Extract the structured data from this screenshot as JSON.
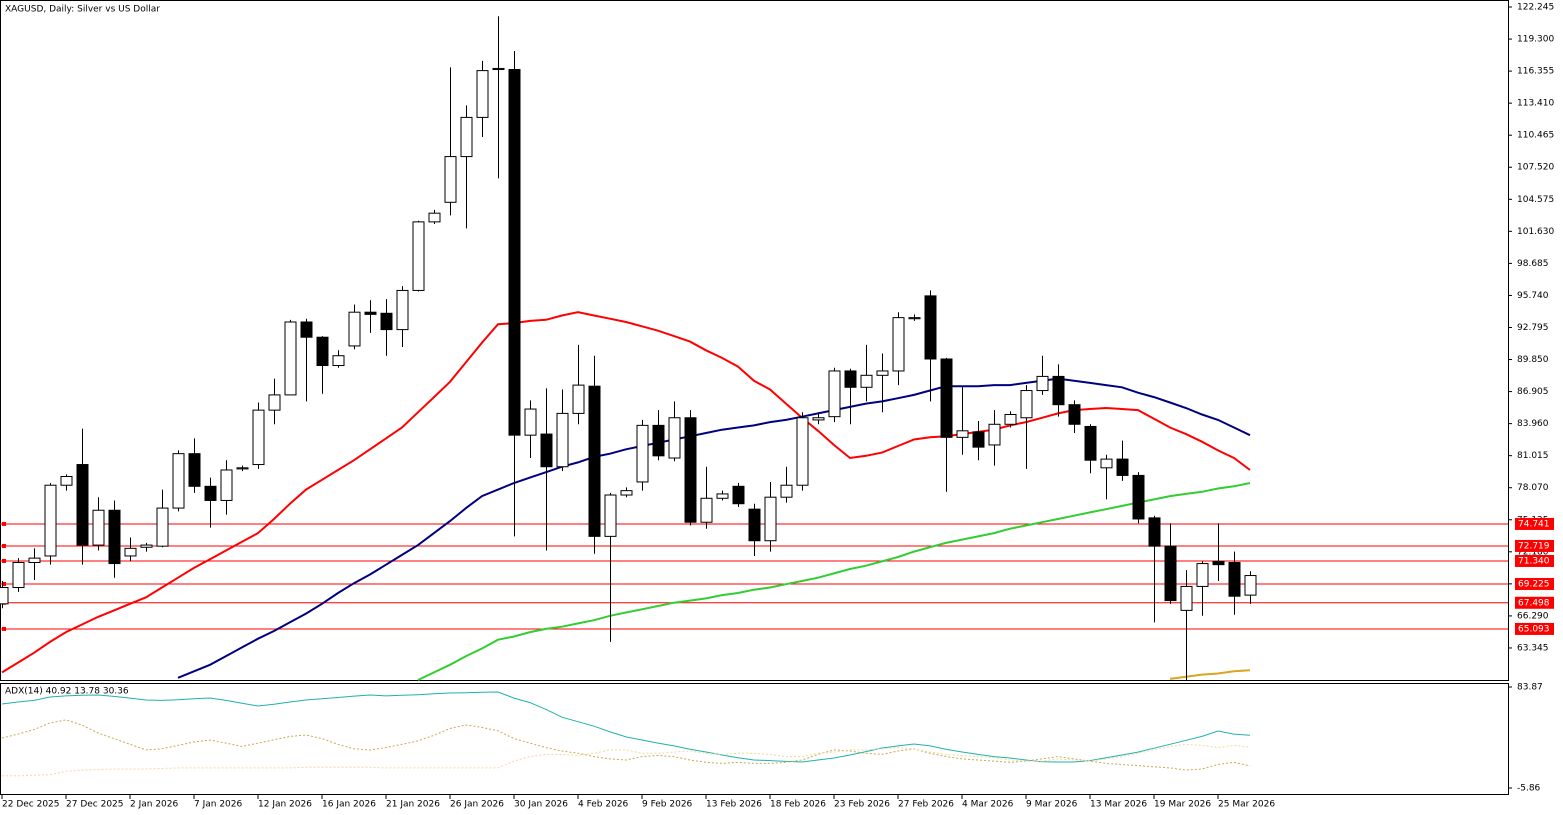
{
  "chart_data": [
    {
      "type": "candlestick",
      "title": "XAGUSD, Daily:  Silver vs US Dollar",
      "categories": [
        "22 Dec 2025",
        null,
        null,
        null,
        "27 Dec 2025",
        null,
        null,
        null,
        "2 Jan 2026",
        null,
        null,
        null,
        "7 Jan 2026",
        null,
        null,
        null,
        "12 Jan 2026",
        null,
        null,
        null,
        "16 Jan 2026",
        null,
        null,
        null,
        "21 Jan 2026",
        null,
        null,
        null,
        "26 Jan 2026",
        null,
        null,
        null,
        "30 Jan 2026",
        null,
        null,
        null,
        "4 Feb 2026",
        null,
        null,
        null,
        "9 Feb 2026",
        null,
        null,
        null,
        "13 Feb 2026",
        null,
        null,
        null,
        "18 Feb 2026",
        null,
        null,
        null,
        "23 Feb 2026",
        null,
        null,
        null,
        "27 Feb 2026",
        null,
        null,
        null,
        "4 Mar 2026",
        null,
        null,
        null,
        "9 Mar 2026",
        null,
        null,
        null,
        "13 Mar 2026",
        null,
        null,
        null,
        "19 Mar 2026",
        null,
        null,
        null,
        "25 Mar 2026",
        null,
        null
      ],
      "open": [
        67.4,
        68.9,
        71.2,
        71.8,
        78.3,
        80.2,
        72.8,
        76.0,
        71.8,
        72.6,
        72.7,
        76.2,
        81.2,
        78.2,
        76.9,
        79.8,
        80.2,
        85.2,
        86.6,
        93.3,
        91.9,
        89.3,
        91.1,
        94.2,
        94.1,
        92.6,
        96.2,
        102.5,
        104.3,
        108.5,
        112.1,
        116.5,
        116.5,
        82.9,
        83.0,
        80.0,
        84.9,
        87.4,
        73.6,
        77.4,
        78.6,
        83.8,
        80.8,
        84.5,
        74.9,
        77.1,
        78.2,
        76.1,
        73.2,
        77.2,
        78.3,
        84.3,
        84.6,
        88.8,
        87.3,
        88.4,
        88.8,
        93.6,
        95.7,
        89.9,
        82.7,
        83.2,
        82.0,
        83.9,
        84.5,
        87.0,
        88.3,
        85.7,
        83.7,
        79.9,
        80.7,
        79.2,
        75.3,
        72.7,
        66.8,
        69.0,
        71.3,
        71.2,
        68.2
      ],
      "high": [
        69.5,
        71.6,
        72.5,
        78.5,
        79.3,
        83.5,
        77.2,
        76.9,
        73.5,
        73.0,
        77.9,
        81.5,
        82.6,
        79.0,
        80.6,
        80.1,
        85.9,
        88.1,
        93.5,
        93.6,
        92.0,
        90.7,
        94.9,
        95.3,
        95.4,
        96.6,
        102.6,
        103.6,
        116.7,
        113.2,
        117.3,
        121.4,
        118.2,
        86.1,
        87.2,
        87.1,
        91.2,
        90.2,
        77.6,
        78.1,
        84.3,
        85.2,
        86.0,
        85.2,
        80.0,
        77.8,
        78.5,
        76.6,
        78.6,
        80.0,
        85.0,
        85.0,
        89.1,
        89.0,
        91.2,
        90.4,
        94.2,
        94.0,
        96.2,
        90.0,
        87.4,
        84.2,
        85.2,
        85.1,
        87.5,
        90.2,
        89.4,
        86.1,
        83.9,
        81.1,
        82.4,
        79.5,
        75.5,
        74.8,
        70.5,
        71.3,
        74.8,
        72.2,
        70.4
      ],
      "low": [
        67.0,
        68.5,
        69.6,
        71.0,
        77.8,
        71.0,
        72.3,
        69.8,
        71.3,
        72.2,
        72.6,
        75.9,
        77.6,
        74.4,
        75.6,
        79.6,
        79.8,
        83.9,
        86.6,
        86.0,
        86.7,
        89.1,
        90.8,
        92.3,
        90.2,
        91.0,
        96.1,
        102.3,
        103.1,
        101.9,
        110.3,
        106.5,
        73.6,
        80.8,
        72.3,
        79.6,
        83.9,
        72.0,
        63.9,
        77.2,
        77.8,
        80.6,
        80.5,
        74.6,
        74.3,
        76.9,
        76.3,
        71.8,
        72.2,
        76.7,
        77.8,
        83.9,
        84.1,
        83.9,
        86.0,
        85.0,
        87.5,
        93.4,
        86.0,
        77.7,
        81.1,
        80.6,
        80.1,
        83.6,
        79.8,
        86.6,
        84.6,
        83.1,
        79.4,
        77.0,
        78.7,
        74.8,
        65.7,
        67.4,
        60.4,
        66.3,
        69.5,
        66.4,
        67.4
      ],
      "close": [
        68.9,
        71.2,
        71.6,
        78.3,
        79.1,
        72.8,
        76.0,
        71.1,
        72.5,
        72.8,
        76.2,
        81.2,
        78.2,
        76.9,
        79.7,
        79.9,
        85.2,
        86.6,
        93.3,
        91.9,
        89.3,
        90.2,
        94.2,
        94.0,
        92.6,
        96.2,
        102.5,
        103.3,
        108.5,
        112.1,
        116.4,
        116.6,
        82.9,
        85.3,
        80.0,
        84.9,
        87.5,
        73.6,
        77.4,
        77.8,
        83.8,
        81.0,
        84.5,
        74.9,
        77.1,
        77.5,
        76.6,
        73.2,
        77.2,
        78.3,
        84.5,
        84.5,
        88.8,
        87.3,
        88.4,
        88.8,
        93.7,
        93.7,
        89.9,
        82.7,
        83.3,
        81.8,
        83.9,
        84.8,
        87.0,
        88.3,
        85.7,
        83.9,
        80.6,
        80.7,
        79.2,
        75.2,
        72.7,
        67.7,
        69.0,
        71.1,
        71.0,
        68.1,
        70.0
      ],
      "up_color": "#ffffff",
      "down_color": "#000000",
      "series": [
        {
          "color": "#ff0000",
          "values": [
            61.1,
            62.0,
            62.9,
            63.9,
            64.8,
            65.5,
            66.2,
            66.8,
            67.4,
            68.0,
            68.9,
            69.8,
            70.7,
            71.5,
            72.3,
            73.1,
            73.9,
            75.2,
            76.6,
            77.9,
            78.8,
            79.7,
            80.6,
            81.6,
            82.6,
            83.6,
            85.0,
            86.4,
            87.8,
            89.6,
            91.4,
            93.1,
            93.2,
            93.4,
            93.5,
            93.9,
            94.2,
            93.9,
            93.6,
            93.3,
            92.9,
            92.5,
            92.0,
            91.5,
            90.7,
            90.0,
            89.2,
            87.9,
            87.1,
            85.8,
            84.5,
            83.3,
            82.0,
            80.8,
            81.0,
            81.3,
            81.9,
            82.5,
            82.7,
            82.8,
            83.0,
            83.2,
            83.4,
            83.8,
            84.1,
            84.5,
            84.9,
            85.2,
            85.3,
            85.4,
            85.3,
            85.2,
            84.4,
            83.6,
            83.0,
            82.3,
            81.5,
            80.8,
            79.7
          ]
        },
        {
          "color": "#000080",
          "values": [
            null,
            null,
            null,
            null,
            null,
            null,
            null,
            null,
            null,
            null,
            null,
            60.6,
            61.2,
            61.8,
            62.6,
            63.4,
            64.2,
            64.9,
            65.7,
            66.5,
            67.4,
            68.4,
            69.3,
            70.1,
            71.0,
            71.9,
            72.8,
            73.9,
            75.0,
            76.2,
            77.3,
            77.9,
            78.5,
            79.0,
            79.5,
            80.0,
            80.4,
            80.9,
            81.2,
            81.6,
            81.9,
            82.2,
            82.5,
            82.8,
            83.1,
            83.4,
            83.6,
            83.8,
            84.1,
            84.3,
            84.6,
            84.9,
            85.2,
            85.5,
            85.8,
            86.0,
            86.3,
            86.6,
            87.0,
            87.4,
            87.4,
            87.4,
            87.5,
            87.5,
            87.7,
            87.9,
            88.1,
            87.9,
            87.7,
            87.5,
            87.3,
            86.8,
            86.4,
            85.9,
            85.4,
            84.8,
            84.3,
            83.6,
            82.9
          ]
        },
        {
          "color": "#32cd32",
          "values": [
            null,
            null,
            null,
            null,
            null,
            null,
            null,
            null,
            null,
            null,
            null,
            null,
            null,
            null,
            null,
            null,
            null,
            null,
            null,
            null,
            null,
            null,
            null,
            null,
            null,
            null,
            60.4,
            61.1,
            61.8,
            62.6,
            63.3,
            64.1,
            64.4,
            64.8,
            65.1,
            65.3,
            65.6,
            65.9,
            66.3,
            66.6,
            66.9,
            67.2,
            67.5,
            67.7,
            67.9,
            68.2,
            68.4,
            68.7,
            68.9,
            69.2,
            69.5,
            69.8,
            70.2,
            70.6,
            70.9,
            71.3,
            71.7,
            72.2,
            72.6,
            73.0,
            73.3,
            73.6,
            73.9,
            74.3,
            74.6,
            74.9,
            75.2,
            75.5,
            75.8,
            76.1,
            76.4,
            76.7,
            77.0,
            77.3,
            77.5,
            77.7,
            78.0,
            78.2,
            78.5
          ]
        },
        {
          "color": "#daa520",
          "values": [
            null,
            null,
            null,
            null,
            null,
            null,
            null,
            null,
            null,
            null,
            null,
            null,
            null,
            null,
            null,
            null,
            null,
            null,
            null,
            null,
            null,
            null,
            null,
            null,
            null,
            null,
            null,
            null,
            null,
            null,
            null,
            null,
            null,
            null,
            null,
            null,
            null,
            null,
            null,
            null,
            null,
            null,
            null,
            null,
            null,
            null,
            null,
            null,
            null,
            null,
            null,
            null,
            null,
            null,
            null,
            null,
            null,
            null,
            null,
            null,
            null,
            null,
            null,
            null,
            null,
            null,
            null,
            null,
            null,
            null,
            null,
            null,
            null,
            60.5,
            60.7,
            60.9,
            61.0,
            61.2,
            61.3
          ]
        }
      ],
      "hlines": [
        {
          "value": 74.741,
          "label": "74.741"
        },
        {
          "value": 72.719,
          "label": "72.719"
        },
        {
          "value": 71.34,
          "label": "71.340"
        },
        {
          "value": 69.225,
          "label": "69.225"
        },
        {
          "value": 67.498,
          "label": "67.498"
        },
        {
          "value": 65.093,
          "label": "65.093"
        }
      ],
      "hline_color": "#ff0000",
      "ylim": [
        60.401,
        122.797
      ],
      "yticks": [
        {
          "value": 122.245,
          "label": "122.245"
        },
        {
          "value": 119.3,
          "label": "119.300"
        },
        {
          "value": 116.355,
          "label": "116.355"
        },
        {
          "value": 113.41,
          "label": "113.410"
        },
        {
          "value": 110.465,
          "label": "110.465"
        },
        {
          "value": 107.52,
          "label": "107.520"
        },
        {
          "value": 104.575,
          "label": "104.575"
        },
        {
          "value": 101.63,
          "label": "101.630"
        },
        {
          "value": 98.685,
          "label": "98.685"
        },
        {
          "value": 95.74,
          "label": "95.740"
        },
        {
          "value": 92.795,
          "label": "92.795"
        },
        {
          "value": 89.85,
          "label": "89.850"
        },
        {
          "value": 86.905,
          "label": "86.905"
        },
        {
          "value": 83.96,
          "label": "83.960"
        },
        {
          "value": 81.015,
          "label": "81.015"
        },
        {
          "value": 78.07,
          "label": "78.070"
        },
        {
          "value": 75.125,
          "label": "75.125"
        },
        {
          "value": 72.18,
          "label": "72.180"
        },
        {
          "value": 69.235,
          "label": "69.235"
        },
        {
          "value": 66.29,
          "label": "66.290"
        },
        {
          "value": 63.345,
          "label": "63.345"
        }
      ]
    },
    {
      "type": "line",
      "title": "ADX(14) 40.92 13.78 30.36",
      "series": [
        {
          "color": "#20b2aa",
          "style": "solid",
          "values": [
            68.8,
            70.5,
            72.0,
            75.0,
            76.0,
            76.5,
            76.8,
            75.5,
            74.0,
            72.3,
            72.0,
            72.5,
            73.5,
            74.1,
            72.0,
            69.5,
            67.0,
            68.5,
            70.5,
            72.3,
            73.5,
            74.5,
            75.8,
            76.8,
            76.0,
            76.5,
            77.0,
            77.8,
            78.5,
            78.8,
            79.2,
            79.4,
            74.0,
            70.0,
            64.0,
            57.0,
            53.0,
            49.0,
            44.0,
            39.5,
            36.8,
            34.0,
            31.5,
            28.5,
            26.1,
            23.5,
            21.0,
            19.0,
            18.5,
            17.8,
            17.2,
            19.0,
            20.8,
            23.5,
            26.5,
            29.7,
            31.5,
            33.2,
            31.5,
            28.5,
            26.1,
            24.0,
            22.0,
            20.8,
            19.0,
            17.5,
            17.2,
            17.2,
            18.5,
            21.0,
            23.5,
            26.0,
            29.5,
            33.0,
            36.5,
            40.0,
            44.8,
            42.0,
            40.92
          ]
        },
        {
          "color": "#c8a850",
          "style": "dotted",
          "values": [
            38.6,
            42,
            46,
            52,
            54.6,
            50,
            43,
            38,
            33,
            28,
            29,
            32,
            35,
            36.8,
            34,
            31,
            34,
            37,
            40,
            41.2,
            38,
            33,
            29,
            27.9,
            30,
            33,
            36,
            41,
            47,
            50.1,
            48,
            45,
            38,
            34,
            30,
            27,
            25,
            22,
            20,
            19,
            22,
            23,
            22,
            19,
            17,
            16,
            17,
            16,
            16,
            17,
            19,
            24,
            28,
            27,
            25,
            24,
            27,
            29,
            25,
            22,
            20,
            19,
            18,
            17,
            18,
            20,
            22,
            20,
            18,
            16,
            15,
            14,
            13,
            12,
            10,
            11,
            15,
            17,
            13.78
          ]
        },
        {
          "color": "#f0d8a0",
          "style": "dotted",
          "values": [
            5,
            5,
            5.5,
            6,
            9,
            10,
            10.5,
            11,
            11,
            11,
            11.5,
            12,
            12,
            12,
            12,
            12,
            12,
            12,
            12,
            12.5,
            12.5,
            12.5,
            12.5,
            12.5,
            12,
            12,
            12,
            12,
            12,
            12,
            12,
            12,
            18,
            22,
            24,
            24,
            23,
            25,
            28,
            28,
            25,
            25,
            26,
            27,
            25,
            24,
            25,
            25,
            24,
            22,
            22,
            25,
            26,
            28,
            28,
            29,
            30,
            29,
            26,
            24,
            23,
            22,
            21,
            19,
            18,
            18,
            20,
            19,
            18,
            20,
            22,
            25,
            28,
            31,
            33,
            32,
            30,
            32,
            30.36
          ]
        }
      ],
      "ylim": [
        -5.86,
        83.87
      ],
      "yticks": [
        83.87,
        -5.86
      ]
    }
  ]
}
